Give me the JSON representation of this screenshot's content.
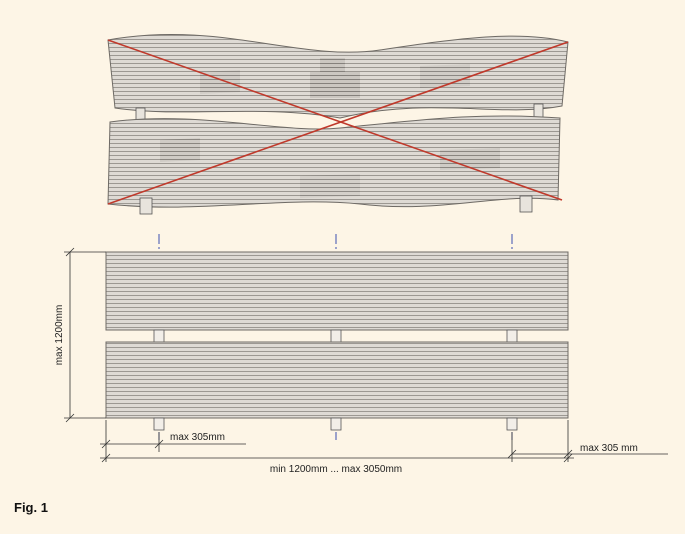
{
  "figure": {
    "label": "Fig. 1"
  },
  "dimensions": {
    "height_max": "max 1200mm",
    "overhang_left": "max 305mm",
    "overhang_right": "max 305 mm",
    "length_range": "min 1200mm ... max 3050mm"
  },
  "colors": {
    "background": "#fdf5e6",
    "board_fill": "#dedad4",
    "board_line": "#8c8882",
    "cross_out": "#c0392b",
    "centerline": "#3a4fb0",
    "dimension_line": "#333333"
  },
  "layout_notes": {
    "top_view": "incorrect-warped-boards-crossed-out",
    "bottom_view": "correct-straight-boards-on-three-supports"
  }
}
